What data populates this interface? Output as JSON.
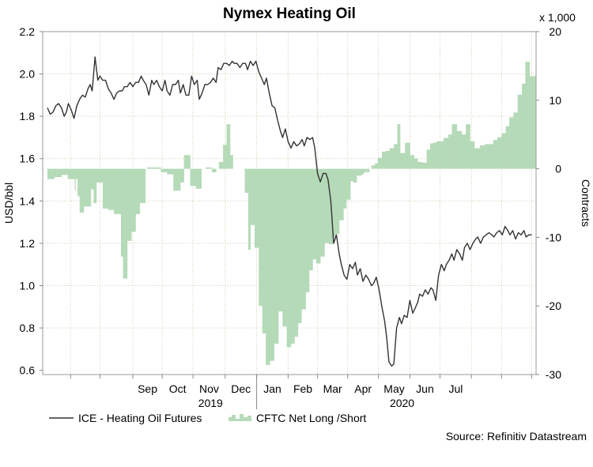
{
  "chart_data": {
    "type": "line",
    "title": "Nymex Heating Oil",
    "ylabel_left": "USD/bbl",
    "ylabel_right": "Contracts",
    "right_multiplier_label": "x 1,000",
    "source": "Source: Refinitiv Datastream",
    "ylim_left": [
      0.58,
      2.2
    ],
    "ylim_right": [
      -30,
      20
    ],
    "yticks_left": [
      "0.6",
      "0.8",
      "1.0",
      "1.2",
      "1.4",
      "1.6",
      "1.8",
      "2.0",
      "2.2"
    ],
    "yticks_right": [
      "-30",
      "-20",
      "-10",
      "0",
      "10",
      "20"
    ],
    "x_months": [
      "Sep",
      "Oct",
      "Nov",
      "Dec",
      "Jan",
      "Feb",
      "Mar",
      "Apr",
      "May",
      "Jun",
      "Jul"
    ],
    "x_years": [
      "2019",
      "2020"
    ],
    "grid": true,
    "legend_placement": "bottom-left",
    "colors": {
      "line": "#333333",
      "bars": "#b5dab8",
      "grid": "#cfcfb0"
    },
    "series": [
      {
        "name": "ICE - Heating Oil Futures",
        "kind": "line",
        "axis": "left",
        "points": [
          [
            0.0,
            1.84
          ],
          [
            0.4,
            1.81
          ],
          [
            0.8,
            1.82
          ],
          [
            1.2,
            1.85
          ],
          [
            1.6,
            1.86
          ],
          [
            2.0,
            1.84
          ],
          [
            2.4,
            1.8
          ],
          [
            2.7,
            1.82
          ],
          [
            3.0,
            1.86
          ],
          [
            3.4,
            1.83
          ],
          [
            3.8,
            1.79
          ],
          [
            4.2,
            1.85
          ],
          [
            4.6,
            1.88
          ],
          [
            5.0,
            1.9
          ],
          [
            5.4,
            1.89
          ],
          [
            5.8,
            1.93
          ],
          [
            6.1,
            1.95
          ],
          [
            6.4,
            1.92
          ],
          [
            6.8,
            2.08
          ],
          [
            7.2,
            1.97
          ],
          [
            7.5,
            1.99
          ],
          [
            7.9,
            1.97
          ],
          [
            8.3,
            1.97
          ],
          [
            8.7,
            1.93
          ],
          [
            9.1,
            1.91
          ],
          [
            9.5,
            1.88
          ],
          [
            9.9,
            1.91
          ],
          [
            10.3,
            1.92
          ],
          [
            10.7,
            1.92
          ],
          [
            11.0,
            1.94
          ],
          [
            11.4,
            1.94
          ],
          [
            11.8,
            1.96
          ],
          [
            12.2,
            1.94
          ],
          [
            12.6,
            1.96
          ],
          [
            13.0,
            1.96
          ],
          [
            13.4,
            1.99
          ],
          [
            13.7,
            1.97
          ],
          [
            14.1,
            1.95
          ],
          [
            14.5,
            1.9
          ],
          [
            14.9,
            1.97
          ],
          [
            15.2,
            1.95
          ],
          [
            15.6,
            1.97
          ],
          [
            16.0,
            1.94
          ],
          [
            16.4,
            1.92
          ],
          [
            16.8,
            1.97
          ],
          [
            17.1,
            1.92
          ],
          [
            17.5,
            1.9
          ],
          [
            17.9,
            1.95
          ],
          [
            18.3,
            1.95
          ],
          [
            18.7,
            1.97
          ],
          [
            19.0,
            1.91
          ],
          [
            19.4,
            1.95
          ],
          [
            19.8,
            1.9
          ],
          [
            20.2,
            1.9
          ],
          [
            20.6,
            1.99
          ],
          [
            21.0,
            1.95
          ],
          [
            21.4,
            1.97
          ],
          [
            21.7,
            1.88
          ],
          [
            22.1,
            1.91
          ],
          [
            22.5,
            1.95
          ],
          [
            22.9,
            1.95
          ],
          [
            23.3,
            1.96
          ],
          [
            23.7,
            1.98
          ],
          [
            24.1,
            1.96
          ],
          [
            24.4,
            2.03
          ],
          [
            24.8,
            2.02
          ],
          [
            25.2,
            2.05
          ],
          [
            25.6,
            2.05
          ],
          [
            26.0,
            2.04
          ],
          [
            26.4,
            2.06
          ],
          [
            26.7,
            2.05
          ],
          [
            27.1,
            2.05
          ],
          [
            27.5,
            2.03
          ],
          [
            27.9,
            2.05
          ],
          [
            28.3,
            2.05
          ],
          [
            28.6,
            2.02
          ],
          [
            29.0,
            2.06
          ],
          [
            29.4,
            2.04
          ],
          [
            29.8,
            2.06
          ],
          [
            30.2,
            2.01
          ],
          [
            30.6,
            1.98
          ],
          [
            31.0,
            1.95
          ],
          [
            31.3,
            1.98
          ],
          [
            31.7,
            1.91
          ],
          [
            32.1,
            1.85
          ],
          [
            32.5,
            1.84
          ],
          [
            32.9,
            1.78
          ],
          [
            33.3,
            1.73
          ],
          [
            33.6,
            1.7
          ],
          [
            34.0,
            1.74
          ],
          [
            34.4,
            1.68
          ],
          [
            34.8,
            1.65
          ],
          [
            35.2,
            1.68
          ],
          [
            35.6,
            1.66
          ],
          [
            36.0,
            1.67
          ],
          [
            36.4,
            1.69
          ],
          [
            36.7,
            1.66
          ],
          [
            37.1,
            1.7
          ],
          [
            37.5,
            1.69
          ],
          [
            37.9,
            1.7
          ],
          [
            38.2,
            1.65
          ],
          [
            38.6,
            1.53
          ],
          [
            39.0,
            1.49
          ],
          [
            39.4,
            1.53
          ],
          [
            39.8,
            1.53
          ],
          [
            40.1,
            1.5
          ],
          [
            40.5,
            1.4
          ],
          [
            40.9,
            1.2
          ],
          [
            41.3,
            1.24
          ],
          [
            41.7,
            1.15
          ],
          [
            42.0,
            1.1
          ],
          [
            42.4,
            1.05
          ],
          [
            42.8,
            1.03
          ],
          [
            43.2,
            1.1
          ],
          [
            43.6,
            1.08
          ],
          [
            44.0,
            1.11
          ],
          [
            44.3,
            1.05
          ],
          [
            44.7,
            1.08
          ],
          [
            45.1,
            1.02
          ],
          [
            45.5,
            1.05
          ],
          [
            45.9,
            1.03
          ],
          [
            46.3,
            1.0
          ],
          [
            46.6,
            1.01
          ],
          [
            47.0,
            1.04
          ],
          [
            47.4,
            0.98
          ],
          [
            47.8,
            0.9
          ],
          [
            48.2,
            0.83
          ],
          [
            48.5,
            0.75
          ],
          [
            48.8,
            0.64
          ],
          [
            49.2,
            0.62
          ],
          [
            49.5,
            0.63
          ],
          [
            49.9,
            0.8
          ],
          [
            50.3,
            0.85
          ],
          [
            50.6,
            0.82
          ],
          [
            51.0,
            0.86
          ],
          [
            51.4,
            0.85
          ],
          [
            51.8,
            0.93
          ],
          [
            52.2,
            0.87
          ],
          [
            52.5,
            0.89
          ],
          [
            52.9,
            0.92
          ],
          [
            53.2,
            0.96
          ],
          [
            53.6,
            0.95
          ],
          [
            54.0,
            0.98
          ],
          [
            54.4,
            0.96
          ],
          [
            54.8,
            0.99
          ],
          [
            55.1,
            0.98
          ],
          [
            55.5,
            0.93
          ],
          [
            55.9,
            1.05
          ],
          [
            56.3,
            1.1
          ],
          [
            56.7,
            1.07
          ],
          [
            57.0,
            1.1
          ],
          [
            57.4,
            1.12
          ],
          [
            57.8,
            1.15
          ],
          [
            58.1,
            1.12
          ],
          [
            58.5,
            1.17
          ],
          [
            58.9,
            1.15
          ],
          [
            59.3,
            1.12
          ],
          [
            59.6,
            1.18
          ],
          [
            60.0,
            1.2
          ],
          [
            60.4,
            1.17
          ],
          [
            60.8,
            1.2
          ],
          [
            61.2,
            1.22
          ],
          [
            61.5,
            1.23
          ],
          [
            61.9,
            1.2
          ],
          [
            62.3,
            1.23
          ],
          [
            62.7,
            1.24
          ],
          [
            63.1,
            1.25
          ],
          [
            63.5,
            1.24
          ],
          [
            63.8,
            1.23
          ],
          [
            64.2,
            1.25
          ],
          [
            64.6,
            1.26
          ],
          [
            65.0,
            1.24
          ],
          [
            65.4,
            1.28
          ],
          [
            65.8,
            1.26
          ],
          [
            66.1,
            1.24
          ],
          [
            66.5,
            1.26
          ],
          [
            66.9,
            1.22
          ],
          [
            67.3,
            1.25
          ],
          [
            67.7,
            1.24
          ],
          [
            68.1,
            1.26
          ],
          [
            68.4,
            1.23
          ],
          [
            68.8,
            1.24
          ],
          [
            69.2,
            1.24
          ]
        ]
      },
      {
        "name": "CFTC Net Long /Short",
        "kind": "bar",
        "axis": "right",
        "steps": [
          [
            0.0,
            -1.5
          ],
          [
            1.0,
            -1.2
          ],
          [
            2.0,
            -0.9
          ],
          [
            2.9,
            -1.5
          ],
          [
            3.9,
            -3.2
          ],
          [
            4.0,
            -1.5
          ],
          [
            4.3,
            -4.0
          ],
          [
            4.6,
            -6.4
          ],
          [
            5.2,
            -5.5
          ],
          [
            6.2,
            -3.0
          ],
          [
            6.6,
            -5.0
          ],
          [
            7.0,
            -2.0
          ],
          [
            7.9,
            -5.8
          ],
          [
            8.7,
            -6.0
          ],
          [
            9.5,
            -6.6
          ],
          [
            10.5,
            -12.8
          ],
          [
            10.8,
            -16.0
          ],
          [
            11.4,
            -10.5
          ],
          [
            12.0,
            -9.2
          ],
          [
            12.6,
            -6.6
          ],
          [
            13.2,
            -5.0
          ],
          [
            14.0,
            0.0
          ],
          [
            14.2,
            0.2
          ],
          [
            16.2,
            -0.5
          ],
          [
            17.1,
            -0.8
          ],
          [
            18.0,
            -3.2
          ],
          [
            19.0,
            -2.0
          ],
          [
            19.5,
            2.0
          ],
          [
            20.4,
            -2.5
          ],
          [
            21.2,
            -2.9
          ],
          [
            22.0,
            0.0
          ],
          [
            22.6,
            0.2
          ],
          [
            23.5,
            -0.5
          ],
          [
            24.1,
            0.0
          ],
          [
            24.5,
            1.0
          ],
          [
            25.1,
            3.5
          ],
          [
            25.6,
            6.5
          ],
          [
            26.1,
            2.0
          ],
          [
            26.5,
            0.0
          ],
          [
            28.2,
            -3.5
          ],
          [
            28.7,
            -11.8
          ],
          [
            29.0,
            -8.2
          ],
          [
            29.6,
            -11.5
          ],
          [
            30.2,
            -20.0
          ],
          [
            30.7,
            -24.0
          ],
          [
            31.2,
            -28.6
          ],
          [
            31.8,
            -28.0
          ],
          [
            32.4,
            -25.5
          ],
          [
            33.0,
            -20.8
          ],
          [
            33.6,
            -23.0
          ],
          [
            34.2,
            -26.0
          ],
          [
            34.8,
            -25.5
          ],
          [
            35.3,
            -24.5
          ],
          [
            35.8,
            -22.5
          ],
          [
            36.3,
            -20.5
          ],
          [
            36.9,
            -18.0
          ],
          [
            37.4,
            -14.8
          ],
          [
            37.9,
            -13.2
          ],
          [
            38.4,
            -13.8
          ],
          [
            39.0,
            -12.8
          ],
          [
            39.6,
            -10.8
          ],
          [
            40.2,
            -11.0
          ],
          [
            40.8,
            -10.0
          ],
          [
            41.2,
            -9.5
          ],
          [
            41.7,
            -7.5
          ],
          [
            42.3,
            -5.8
          ],
          [
            42.7,
            -4.5
          ],
          [
            43.3,
            -1.8
          ],
          [
            43.7,
            -2.0
          ],
          [
            44.2,
            -1.0
          ],
          [
            44.9,
            -0.8
          ],
          [
            45.2,
            -0.5
          ],
          [
            46.0,
            0.0
          ],
          [
            46.3,
            0.5
          ],
          [
            46.8,
            0.8
          ],
          [
            47.2,
            1.6
          ],
          [
            47.8,
            2.5
          ],
          [
            48.3,
            2.6
          ],
          [
            48.9,
            3.0
          ],
          [
            49.5,
            3.6
          ],
          [
            50.0,
            6.5
          ],
          [
            50.4,
            2.3
          ],
          [
            51.1,
            3.8
          ],
          [
            51.8,
            2.0
          ],
          [
            52.4,
            1.5
          ],
          [
            52.9,
            1.0
          ],
          [
            53.5,
            0.9
          ],
          [
            54.2,
            2.8
          ],
          [
            54.7,
            3.7
          ],
          [
            55.1,
            3.8
          ],
          [
            55.6,
            4.0
          ],
          [
            56.2,
            4.0
          ],
          [
            56.6,
            4.5
          ],
          [
            57.3,
            5.0
          ],
          [
            57.8,
            6.5
          ],
          [
            58.5,
            5.5
          ],
          [
            59.2,
            5.0
          ],
          [
            59.8,
            6.5
          ],
          [
            60.4,
            4.0
          ],
          [
            61.0,
            3.0
          ],
          [
            61.8,
            3.4
          ],
          [
            62.5,
            3.6
          ],
          [
            63.1,
            3.6
          ],
          [
            63.7,
            4.2
          ],
          [
            64.3,
            4.6
          ],
          [
            64.9,
            5.2
          ],
          [
            65.5,
            6.2
          ],
          [
            66.0,
            7.5
          ],
          [
            66.6,
            8.2
          ],
          [
            67.2,
            10.8
          ],
          [
            67.8,
            12.4
          ],
          [
            68.3,
            15.6
          ],
          [
            68.9,
            13.5
          ]
        ],
        "x_end": 69.8
      }
    ]
  }
}
